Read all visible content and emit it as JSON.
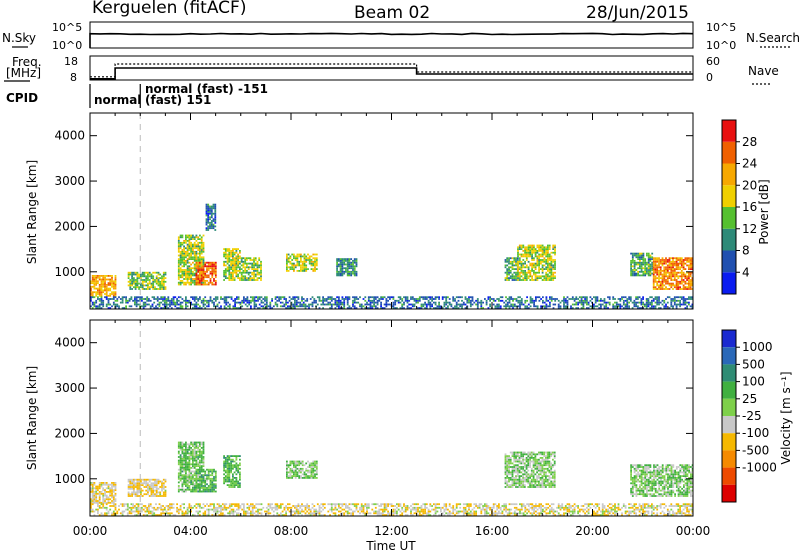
{
  "header": {
    "station": "Kerguelen (fitACF)",
    "beam": "Beam 02",
    "date": "28/Jun/2015"
  },
  "panel_labels": {
    "nsky": "N.Sky",
    "nsearch": "N.Search",
    "freq": "Freq.",
    "freq_unit": "[MHz]",
    "nave": "Nave",
    "cpid": "CPID",
    "cpid_normal": "normal",
    "cpid_fast_top": "normal (fast) -151",
    "cpid_fast_bottom": "(fast) 151"
  },
  "small_ticks": {
    "noise_left_top": "10^5",
    "noise_left_bottom": "10^0",
    "noise_right_top": "10^5",
    "noise_right_bottom": "10^0",
    "freq_top": "18",
    "freq_bottom": "8",
    "nave_top": "60",
    "nave_bottom": "0"
  },
  "colorbars": {
    "power": {
      "label": "Power [dB]",
      "ticks": [
        "4",
        "8",
        "12",
        "16",
        "20",
        "24",
        "28"
      ],
      "colors": [
        "#0a1cf0",
        "#2050b0",
        "#2e8a78",
        "#55c030",
        "#f0d000",
        "#f7a800",
        "#f06000",
        "#e81010"
      ]
    },
    "velocity": {
      "label": "Velocity [m s⁻¹]",
      "ticks": [
        "1000",
        "500",
        "100",
        "25",
        "-25",
        "-100",
        "-500",
        "-1000"
      ],
      "colors": [
        "#1a2ad0",
        "#2a68b8",
        "#2f8c74",
        "#40b040",
        "#7ed04a",
        "#c8c8c8",
        "#f5b800",
        "#f58a00",
        "#ee4a00",
        "#dd0000"
      ]
    }
  },
  "chart_data": [
    {
      "type": "heatmap",
      "title": "Power [dB]",
      "xlabel": "",
      "ylabel": "Slant Range [km]",
      "x_ticks": [
        "00:00",
        "04:00",
        "08:00",
        "12:00",
        "16:00",
        "20:00",
        "00:00"
      ],
      "y_ticks": [
        "1000",
        "2000",
        "3000",
        "4000"
      ],
      "xlim_hours": [
        0,
        24
      ],
      "ylim_km": [
        180,
        4500
      ],
      "colorbar_range": [
        0,
        32
      ],
      "echo_regions": [
        {
          "t": [
            0.0,
            1.0
          ],
          "range": [
            450,
            900
          ],
          "power_db": 22
        },
        {
          "t": [
            1.5,
            3.0
          ],
          "range": [
            600,
            1000
          ],
          "power_db": 14
        },
        {
          "t": [
            3.5,
            4.5
          ],
          "range": [
            700,
            1800
          ],
          "power_db": 16
        },
        {
          "t": [
            4.2,
            5.0
          ],
          "range": [
            700,
            1200
          ],
          "power_db": 26
        },
        {
          "t": [
            4.6,
            5.0
          ],
          "range": [
            1900,
            2500
          ],
          "power_db": 8
        },
        {
          "t": [
            5.3,
            6.0
          ],
          "range": [
            800,
            1500
          ],
          "power_db": 16
        },
        {
          "t": [
            6.0,
            6.8
          ],
          "range": [
            800,
            1300
          ],
          "power_db": 14
        },
        {
          "t": [
            7.8,
            9.0
          ],
          "range": [
            1000,
            1400
          ],
          "power_db": 16
        },
        {
          "t": [
            9.8,
            10.6
          ],
          "range": [
            900,
            1300
          ],
          "power_db": 10
        },
        {
          "t": [
            16.5,
            17.0
          ],
          "range": [
            800,
            1300
          ],
          "power_db": 12
        },
        {
          "t": [
            17.0,
            18.5
          ],
          "range": [
            800,
            1600
          ],
          "power_db": 16
        },
        {
          "t": [
            21.5,
            22.4
          ],
          "range": [
            900,
            1400
          ],
          "power_db": 12
        },
        {
          "t": [
            22.4,
            24.0
          ],
          "range": [
            600,
            1300
          ],
          "power_db": 24
        },
        {
          "t": [
            0.0,
            24.0
          ],
          "range": [
            180,
            450
          ],
          "power_db": 8
        }
      ]
    },
    {
      "type": "heatmap",
      "title": "Velocity [m s⁻¹]",
      "xlabel": "Time UT",
      "ylabel": "Slant Range [km]",
      "x_ticks": [
        "00:00",
        "04:00",
        "08:00",
        "12:00",
        "16:00",
        "20:00",
        "00:00"
      ],
      "y_ticks": [
        "1000",
        "2000",
        "3000",
        "4000"
      ],
      "xlim_hours": [
        0,
        24
      ],
      "ylim_km": [
        180,
        4500
      ],
      "colorbar_range": [
        -1000,
        1000
      ],
      "echo_regions": [
        {
          "t": [
            0.0,
            1.0
          ],
          "range": [
            450,
            900
          ],
          "velocity": -100
        },
        {
          "t": [
            1.5,
            3.0
          ],
          "range": [
            600,
            1000
          ],
          "velocity": -100
        },
        {
          "t": [
            3.5,
            4.5
          ],
          "range": [
            700,
            1800
          ],
          "velocity": 25
        },
        {
          "t": [
            4.2,
            5.0
          ],
          "range": [
            700,
            1200
          ],
          "velocity": 50
        },
        {
          "t": [
            5.3,
            6.0
          ],
          "range": [
            800,
            1500
          ],
          "velocity": 60
        },
        {
          "t": [
            7.8,
            9.0
          ],
          "range": [
            1000,
            1400
          ],
          "velocity": 0
        },
        {
          "t": [
            16.5,
            18.5
          ],
          "range": [
            800,
            1600
          ],
          "velocity": 0
        },
        {
          "t": [
            21.5,
            24.0
          ],
          "range": [
            600,
            1300
          ],
          "velocity": 0
        },
        {
          "t": [
            0.0,
            24.0
          ],
          "range": [
            180,
            450
          ],
          "velocity": -80
        }
      ]
    }
  ],
  "timeline": {
    "freq_mhz": [
      {
        "t": [
          0.0,
          1.0
        ],
        "v": 8.5
      },
      {
        "t": [
          1.0,
          13.0
        ],
        "v": 13.0
      },
      {
        "t": [
          13.0,
          24.0
        ],
        "v": 10.5
      }
    ],
    "nave": [
      {
        "t": [
          0.0,
          1.0
        ],
        "v": 8
      },
      {
        "t": [
          1.0,
          13.0
        ],
        "v": 40
      },
      {
        "t": [
          13.0,
          24.0
        ],
        "v": 20
      }
    ],
    "cpid_change_hour": 2.0
  }
}
